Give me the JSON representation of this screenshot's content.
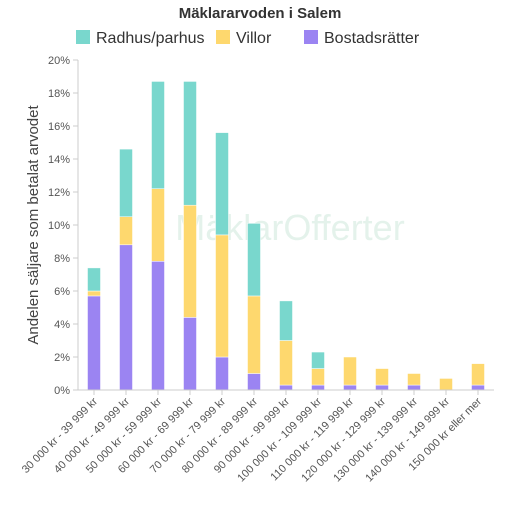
{
  "chart_data": {
    "type": "bar",
    "stacked": true,
    "title": "Mäklararvoden i Salem",
    "ylabel": "Andelen säljare som betalat arvodet",
    "xlabel": "",
    "ylim": [
      0,
      20
    ],
    "ytick_step": 2,
    "ytick_suffix": "%",
    "grid": false,
    "legend_position": "top",
    "watermark": "MäklarOfferter",
    "categories": [
      "30 000 kr - 39 999 kr",
      "40 000 kr - 49 999 kr",
      "50 000 kr - 59 999 kr",
      "60 000 kr - 69 999 kr",
      "70 000 kr - 79 999 kr",
      "80 000 kr - 89 999 kr",
      "90 000 kr - 99 999 kr",
      "100 000 kr - 109 999 kr",
      "110 000 kr - 119 999 kr",
      "120 000 kr - 129 999 kr",
      "130 000 kr - 139 999 kr",
      "140 000 kr - 149 999 kr",
      "150 000 kr eller mer"
    ],
    "series": [
      {
        "name": "Bostadsrätter",
        "color": "#9b84f2",
        "values": [
          5.7,
          8.8,
          7.8,
          4.4,
          2.0,
          1.0,
          0.3,
          0.3,
          0.3,
          0.3,
          0.3,
          0.0,
          0.3
        ]
      },
      {
        "name": "Villor",
        "color": "#fed86e",
        "values": [
          0.3,
          1.7,
          4.4,
          6.8,
          7.4,
          4.7,
          2.7,
          1.0,
          1.7,
          1.0,
          0.7,
          0.7,
          1.3
        ]
      },
      {
        "name": "Radhus/parhus",
        "color": "#79d7cd",
        "values": [
          1.4,
          4.1,
          6.5,
          7.5,
          6.2,
          4.4,
          2.4,
          1.0,
          0.0,
          0.0,
          0.0,
          0.0,
          0.0
        ]
      }
    ],
    "legend_order": [
      "Radhus/parhus",
      "Villor",
      "Bostadsrätter"
    ]
  }
}
